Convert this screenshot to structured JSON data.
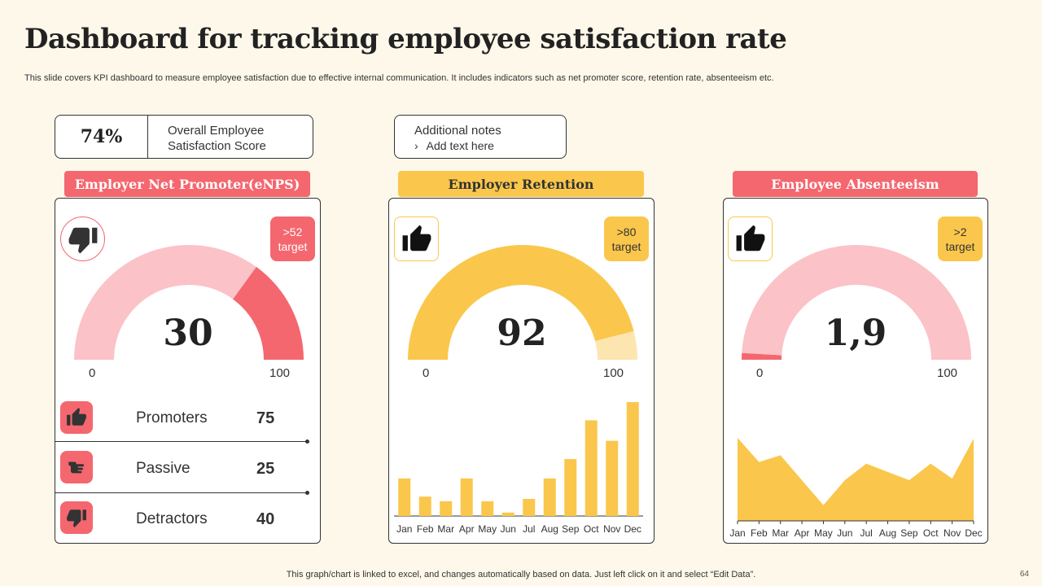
{
  "title": "Dashboard for tracking employee satisfaction rate",
  "subtitle": "This slide covers KPI dashboard to measure employee satisfaction due to effective internal communication. It includes indicators such as net promoter score, retention rate, absenteeism etc.",
  "score": {
    "value": "74%",
    "label": "Overall Employee Satisfaction Score"
  },
  "notes": {
    "title": "Additional notes",
    "arrow": "›",
    "item": "Add text here"
  },
  "colors": {
    "pink": "#f4676f",
    "light_pink": "#fbc2c7",
    "yellow": "#fac74c",
    "light_yellow": "#fde5b0"
  },
  "panels": {
    "enps": {
      "header": "Employer Net Promoter(eNPS)",
      "icon": "thumbs-down-icon",
      "target_line1": ">52",
      "target_line2": "target",
      "gauge_value_text": "30",
      "axis_min": "0",
      "axis_max": "100",
      "rows": [
        {
          "label": "Promoters",
          "value": "75",
          "icon": "thumbs-up-icon"
        },
        {
          "label": "Passive",
          "value": "25",
          "icon": "thumbs-sideways-icon"
        },
        {
          "label": "Detractors",
          "value": "40",
          "icon": "thumbs-down-icon"
        }
      ]
    },
    "retention": {
      "header": "Employer Retention",
      "icon": "thumbs-up-icon",
      "target_line1": ">80",
      "target_line2": "target",
      "gauge_value_text": "92",
      "axis_min": "0",
      "axis_max": "100"
    },
    "absenteeism": {
      "header": "Employee Absenteeism",
      "icon": "thumbs-up-icon",
      "target_line1": ">2",
      "target_line2": "target",
      "gauge_value_text": "1,9",
      "axis_min": "0",
      "axis_max": "100"
    }
  },
  "chart_data": [
    {
      "type": "gauge",
      "title": "Employer Net Promoter(eNPS)",
      "value": 30,
      "min": 0,
      "max": 100,
      "target": 52
    },
    {
      "type": "gauge",
      "title": "Employer Retention",
      "value": 92,
      "min": 0,
      "max": 100,
      "target": 80
    },
    {
      "type": "gauge",
      "title": "Employee Absenteeism",
      "value": 1.9,
      "min": 0,
      "max": 100,
      "target": 2
    },
    {
      "type": "bar",
      "title": "Employer Retention (monthly)",
      "categories": [
        "Jan",
        "Feb",
        "Mar",
        "Apr",
        "May",
        "Jun",
        "Jul",
        "Aug",
        "Sep",
        "Oct",
        "Nov",
        "Dec"
      ],
      "values": [
        33,
        17,
        13,
        33,
        13,
        3,
        15,
        33,
        50,
        84,
        66,
        100
      ],
      "ylim": [
        0,
        100
      ]
    },
    {
      "type": "area",
      "title": "Employee Absenteeism (monthly)",
      "categories": [
        "Jan",
        "Feb",
        "Mar",
        "Apr",
        "May",
        "Jun",
        "Jul",
        "Aug",
        "Sep",
        "Oct",
        "Nov",
        "Dec"
      ],
      "values": [
        100,
        71,
        79,
        49,
        19,
        49,
        69,
        59,
        49,
        69,
        51,
        99
      ],
      "ylim": [
        0,
        100
      ]
    }
  ],
  "footer": "This graph/chart is linked to excel, and changes automatically based on data. Just left click on it and select “Edit Data”.",
  "page_number": "64"
}
